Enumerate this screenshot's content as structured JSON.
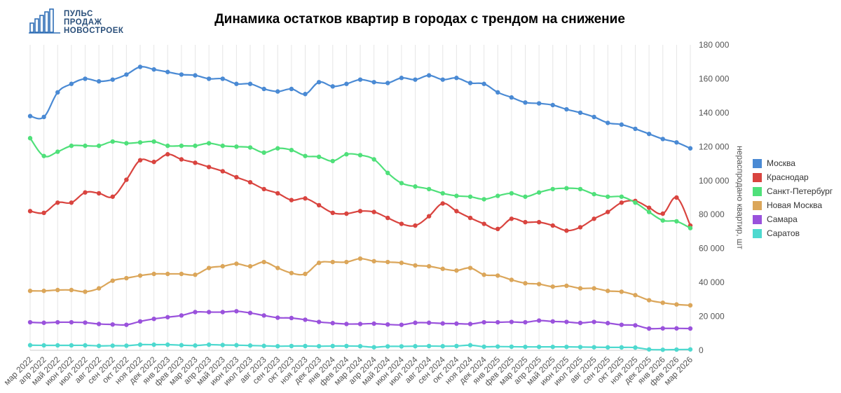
{
  "logo": {
    "lines": [
      "ПУЛЬС",
      "ПРОДАЖ",
      "НОВОСТРОЕК"
    ],
    "color": "#2f6eb5"
  },
  "chart_data": {
    "type": "line",
    "title": "Динамика остатков квартир в городах с трендом на снижение",
    "xlabel": "",
    "ylabel": "нераспродано квартир, шт",
    "ylim": [
      0,
      180000
    ],
    "y_ticks": [
      "0",
      "20 000",
      "40 000",
      "60 000",
      "80 000",
      "100 000",
      "120 000",
      "140 000",
      "160 000",
      "180 000"
    ],
    "y_tick_values": [
      0,
      20000,
      40000,
      60000,
      80000,
      100000,
      120000,
      140000,
      160000,
      180000
    ],
    "grid": "vertical",
    "legend_position": "right",
    "categories": [
      "мар 2022",
      "апр 2022",
      "май 2022",
      "июн 2022",
      "июл 2022",
      "авг 2022",
      "сен 2022",
      "окт 2022",
      "ноя 2022",
      "дек 2022",
      "янв 2023",
      "фев 2023",
      "мар 2023",
      "апр 2023",
      "май 2023",
      "июн 2023",
      "июл 2023",
      "авг 2023",
      "сен 2023",
      "окт 2023",
      "ноя 2023",
      "дек 2023",
      "янв 2024",
      "фев 2024",
      "мар 2024",
      "апр 2024",
      "май 2024",
      "июн 2024",
      "июл 2024",
      "авг 2024",
      "сен 2024",
      "окт 2024",
      "ноя 2024",
      "дек 2024",
      "янв 2025",
      "фев 2025",
      "мар 2025",
      "апр 2025",
      "май 2025",
      "июн 2025",
      "июл 2025",
      "авг 2025",
      "сен 2025",
      "окт 2025",
      "ноя 2025",
      "дек 2025",
      "янв 2026",
      "фев 2026",
      "мар 2026"
    ],
    "series": [
      {
        "name": "Москва",
        "color": "#4a8ad4",
        "values": [
          138000,
          137500,
          152000,
          157000,
          160000,
          158500,
          159500,
          162500,
          167000,
          165500,
          164000,
          162500,
          162000,
          160000,
          160000,
          157000,
          157000,
          154000,
          152500,
          154000,
          151000,
          158000,
          155500,
          157000,
          159500,
          158000,
          157500,
          160500,
          159500,
          162000,
          159500,
          160500,
          157500,
          157000,
          152000,
          149000,
          146000,
          145500,
          144500,
          142000,
          140000,
          137500,
          134000,
          133000,
          130500,
          127500,
          124500,
          122500,
          119000
        ]
      },
      {
        "name": "Краснодар",
        "color": "#d9443f",
        "values": [
          82000,
          81000,
          87000,
          87000,
          93000,
          92500,
          90500,
          100500,
          112000,
          111000,
          115500,
          112500,
          110500,
          108000,
          105500,
          102000,
          99000,
          95000,
          92500,
          88500,
          89500,
          85500,
          81000,
          80500,
          82000,
          81500,
          78000,
          74500,
          73500,
          79000,
          86500,
          82000,
          78000,
          74500,
          71500,
          77500,
          75500,
          75500,
          73500,
          70500,
          72500,
          77500,
          81500,
          87000,
          88000,
          84000,
          80500,
          90000,
          73500
        ]
      },
      {
        "name": "Санкт-Петербург",
        "color": "#4fe07a",
        "values": [
          125000,
          114500,
          117000,
          120500,
          120500,
          120500,
          123000,
          122000,
          122500,
          123000,
          120500,
          120500,
          120500,
          122000,
          120500,
          120000,
          119500,
          116500,
          119000,
          118000,
          114500,
          114000,
          111500,
          115500,
          115000,
          112500,
          104500,
          98500,
          96500,
          95000,
          92500,
          91000,
          90500,
          89000,
          91000,
          92500,
          90500,
          93000,
          95000,
          95500,
          95000,
          92000,
          90500,
          90500,
          87000,
          81500,
          76500,
          76000,
          72000
        ]
      },
      {
        "name": "Новая Москва",
        "color": "#dba65a",
        "values": [
          35000,
          35000,
          35500,
          35500,
          34500,
          36500,
          41000,
          42500,
          44000,
          45000,
          45000,
          45000,
          44500,
          48500,
          49500,
          51000,
          49500,
          52000,
          48500,
          45500,
          45000,
          51500,
          52000,
          52000,
          54000,
          52500,
          52000,
          51500,
          50000,
          49500,
          48000,
          47000,
          48500,
          44500,
          44000,
          41500,
          39500,
          39000,
          37500,
          38000,
          36500,
          36500,
          35000,
          34500,
          32500,
          29500,
          28000,
          27000,
          26500
        ]
      },
      {
        "name": "Самара",
        "color": "#9a52dc",
        "values": [
          16500,
          16200,
          16500,
          16500,
          16300,
          15500,
          15200,
          15000,
          17000,
          18500,
          19500,
          20500,
          22500,
          22500,
          22500,
          23000,
          22000,
          20500,
          19200,
          19000,
          18000,
          16700,
          16000,
          15500,
          15500,
          15700,
          15200,
          15000,
          16200,
          16200,
          15800,
          15700,
          15500,
          16500,
          16500,
          16700,
          16500,
          17500,
          17000,
          16700,
          16100,
          16700,
          16000,
          15000,
          14700,
          12800,
          12900,
          12900,
          12800
        ]
      },
      {
        "name": "Саратов",
        "color": "#4ed9cf",
        "values": [
          3000,
          2900,
          2900,
          2900,
          2900,
          2600,
          2700,
          2700,
          3300,
          3300,
          3300,
          3000,
          2800,
          3300,
          3100,
          3000,
          2800,
          2600,
          2400,
          2500,
          2500,
          2400,
          2500,
          2500,
          2400,
          1800,
          2300,
          2300,
          2400,
          2500,
          2400,
          2500,
          3000,
          2100,
          2200,
          2100,
          2000,
          2000,
          2000,
          2000,
          1900,
          1800,
          1700,
          1700,
          1600,
          500,
          300,
          400,
          500
        ]
      }
    ]
  }
}
